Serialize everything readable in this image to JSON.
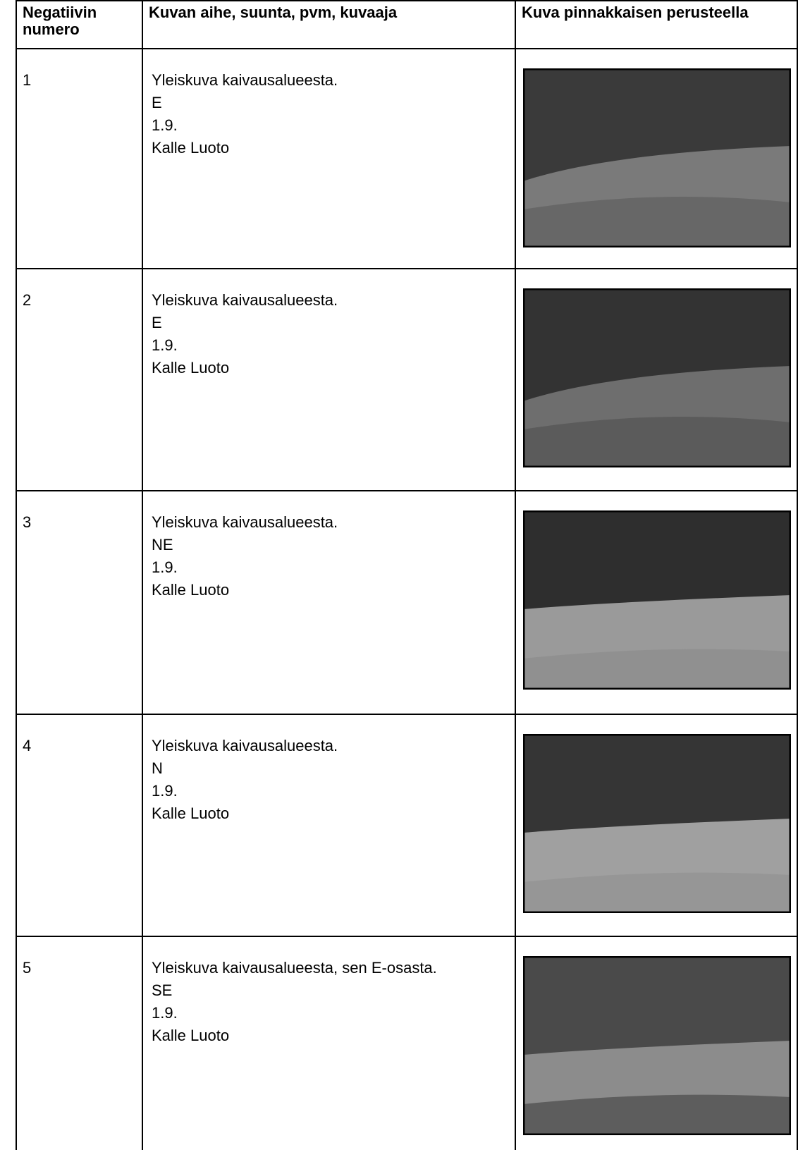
{
  "header": {
    "columns": [
      "Negatiivin numero",
      "Kuvan aihe, suunta, pvm, kuvaaja",
      "Kuva pinnakkaisen perusteella"
    ]
  },
  "rows": [
    {
      "number": "1",
      "description": [
        "Yleiskuva kaivausalueesta.",
        "E",
        "1.9.",
        "Kalle Luoto"
      ]
    },
    {
      "number": "2",
      "description": [
        "Yleiskuva kaivausalueesta.",
        "E",
        "1.9.",
        "Kalle Luoto"
      ]
    },
    {
      "number": "3",
      "description": [
        "Yleiskuva kaivausalueesta.",
        "NE",
        "1.9.",
        "Kalle Luoto"
      ]
    },
    {
      "number": "4",
      "description": [
        "Yleiskuva kaivausalueesta.",
        "N",
        "1.9.",
        "Kalle Luoto"
      ]
    },
    {
      "number": "5",
      "description": [
        "Yleiskuva kaivausalueesta, sen E-osasta.",
        "SE",
        "1.9.",
        "Kalle Luoto"
      ]
    }
  ]
}
